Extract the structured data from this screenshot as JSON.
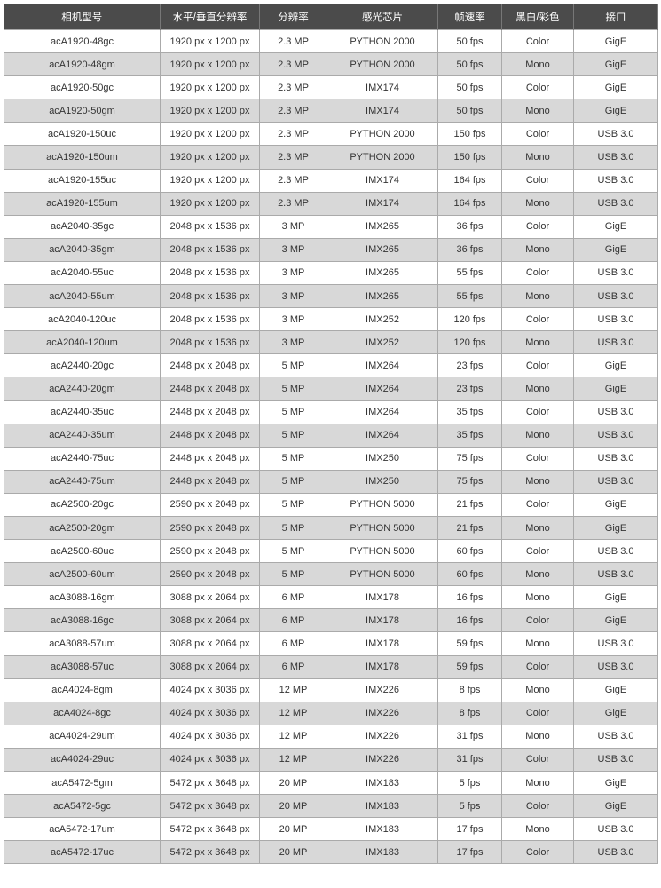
{
  "headers": [
    "相机型号",
    "水平/垂直分辨率",
    "分辨率",
    "感光芯片",
    "帧速率",
    "黑白/彩色",
    "接口"
  ],
  "rows": [
    [
      "acA1920-48gc",
      "1920 px x 1200 px",
      "2.3 MP",
      "PYTHON 2000",
      "50 fps",
      "Color",
      "GigE"
    ],
    [
      "acA1920-48gm",
      "1920 px x 1200 px",
      "2.3 MP",
      "PYTHON 2000",
      "50 fps",
      "Mono",
      "GigE"
    ],
    [
      "acA1920-50gc",
      "1920 px x 1200 px",
      "2.3 MP",
      "IMX174",
      "50 fps",
      "Color",
      "GigE"
    ],
    [
      "acA1920-50gm",
      "1920 px x 1200 px",
      "2.3 MP",
      "IMX174",
      "50 fps",
      "Mono",
      "GigE"
    ],
    [
      "acA1920-150uc",
      "1920 px x 1200 px",
      "2.3 MP",
      "PYTHON 2000",
      "150 fps",
      "Color",
      "USB 3.0"
    ],
    [
      "acA1920-150um",
      "1920 px x 1200 px",
      "2.3 MP",
      "PYTHON 2000",
      "150 fps",
      "Mono",
      "USB 3.0"
    ],
    [
      "acA1920-155uc",
      "1920 px x 1200 px",
      "2.3 MP",
      "IMX174",
      "164 fps",
      "Color",
      "USB 3.0"
    ],
    [
      "acA1920-155um",
      "1920 px x 1200 px",
      "2.3 MP",
      "IMX174",
      "164 fps",
      "Mono",
      "USB 3.0"
    ],
    [
      "acA2040-35gc",
      "2048 px x 1536 px",
      "3 MP",
      "IMX265",
      "36 fps",
      "Color",
      "GigE"
    ],
    [
      "acA2040-35gm",
      "2048 px x 1536 px",
      "3 MP",
      "IMX265",
      "36 fps",
      "Mono",
      "GigE"
    ],
    [
      "acA2040-55uc",
      "2048 px x 1536 px",
      "3 MP",
      "IMX265",
      "55 fps",
      "Color",
      "USB 3.0"
    ],
    [
      "acA2040-55um",
      "2048 px x 1536 px",
      "3 MP",
      "IMX265",
      "55 fps",
      "Mono",
      "USB 3.0"
    ],
    [
      "acA2040-120uc",
      "2048 px x 1536 px",
      "3 MP",
      "IMX252",
      "120 fps",
      "Color",
      "USB 3.0"
    ],
    [
      "acA2040-120um",
      "2048 px x 1536 px",
      "3 MP",
      "IMX252",
      "120 fps",
      "Mono",
      "USB 3.0"
    ],
    [
      "acA2440-20gc",
      "2448 px x 2048 px",
      "5 MP",
      "IMX264",
      "23 fps",
      "Color",
      "GigE"
    ],
    [
      "acA2440-20gm",
      "2448 px x 2048 px",
      "5 MP",
      "IMX264",
      "23 fps",
      "Mono",
      "GigE"
    ],
    [
      "acA2440-35uc",
      "2448 px x 2048 px",
      "5 MP",
      "IMX264",
      "35 fps",
      "Color",
      "USB 3.0"
    ],
    [
      "acA2440-35um",
      "2448 px x 2048 px",
      "5 MP",
      "IMX264",
      "35 fps",
      "Mono",
      "USB 3.0"
    ],
    [
      "acA2440-75uc",
      "2448 px x 2048 px",
      "5 MP",
      "IMX250",
      "75 fps",
      "Color",
      "USB 3.0"
    ],
    [
      "acA2440-75um",
      "2448 px x 2048 px",
      "5 MP",
      "IMX250",
      "75 fps",
      "Mono",
      "USB 3.0"
    ],
    [
      "acA2500-20gc",
      "2590 px x 2048 px",
      "5 MP",
      "PYTHON 5000",
      "21 fps",
      "Color",
      "GigE"
    ],
    [
      "acA2500-20gm",
      "2590 px x 2048 px",
      "5 MP",
      "PYTHON 5000",
      "21 fps",
      "Mono",
      "GigE"
    ],
    [
      "acA2500-60uc",
      "2590 px x 2048 px",
      "5 MP",
      "PYTHON 5000",
      "60 fps",
      "Color",
      "USB 3.0"
    ],
    [
      "acA2500-60um",
      "2590 px x 2048 px",
      "5 MP",
      "PYTHON 5000",
      "60 fps",
      "Mono",
      "USB 3.0"
    ],
    [
      "acA3088-16gm",
      "3088 px x 2064 px",
      "6 MP",
      "IMX178",
      "16 fps",
      "Mono",
      "GigE"
    ],
    [
      "acA3088-16gc",
      "3088 px x 2064 px",
      "6 MP",
      "IMX178",
      "16 fps",
      "Color",
      "GigE"
    ],
    [
      "acA3088-57um",
      "3088 px x 2064 px",
      "6 MP",
      "IMX178",
      "59 fps",
      "Mono",
      "USB 3.0"
    ],
    [
      "acA3088-57uc",
      "3088 px x 2064 px",
      "6 MP",
      "IMX178",
      "59 fps",
      "Color",
      "USB 3.0"
    ],
    [
      "acA4024-8gm",
      "4024 px x 3036 px",
      "12 MP",
      "IMX226",
      "8 fps",
      "Mono",
      "GigE"
    ],
    [
      "acA4024-8gc",
      "4024 px x 3036 px",
      "12 MP",
      "IMX226",
      "8 fps",
      "Color",
      "GigE"
    ],
    [
      "acA4024-29um",
      "4024 px x 3036 px",
      "12 MP",
      "IMX226",
      "31 fps",
      "Mono",
      "USB 3.0"
    ],
    [
      "acA4024-29uc",
      "4024 px x 3036 px",
      "12 MP",
      "IMX226",
      "31 fps",
      "Color",
      "USB 3.0"
    ],
    [
      "acA5472-5gm",
      "5472 px x 3648 px",
      "20 MP",
      "IMX183",
      "5 fps",
      "Mono",
      "GigE"
    ],
    [
      "acA5472-5gc",
      "5472 px x 3648 px",
      "20 MP",
      "IMX183",
      "5 fps",
      "Color",
      "GigE"
    ],
    [
      "acA5472-17um",
      "5472 px x 3648 px",
      "20 MP",
      "IMX183",
      "17 fps",
      "Mono",
      "USB 3.0"
    ],
    [
      "acA5472-17uc",
      "5472 px x 3648 px",
      "20 MP",
      "IMX183",
      "17 fps",
      "Color",
      "USB 3.0"
    ]
  ]
}
